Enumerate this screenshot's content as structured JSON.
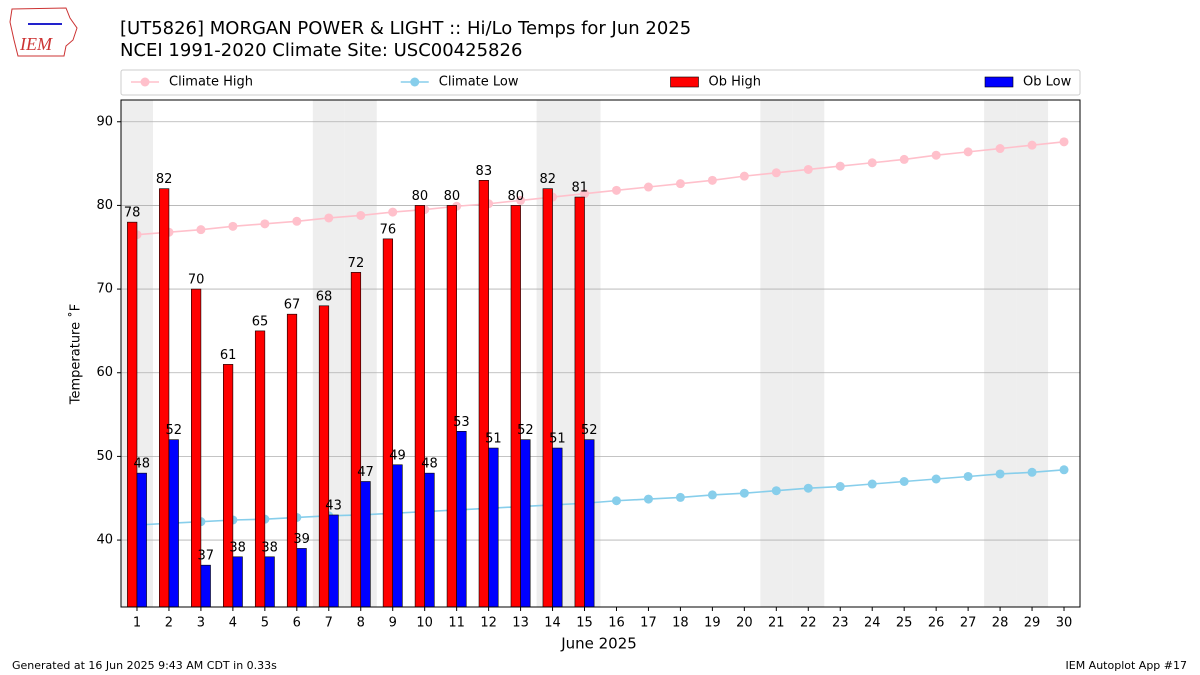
{
  "chart_data": {
    "type": "bar",
    "title": "[UT5826] MORGAN POWER & LIGHT :: Hi/Lo Temps for Jun 2025",
    "subtitle": "NCEI 1991-2020 Climate Site: USC00425826",
    "ylabel": "Temperature ˚F",
    "xlabel": "June 2025",
    "x": [
      1,
      2,
      3,
      4,
      5,
      6,
      7,
      8,
      9,
      10,
      11,
      12,
      13,
      14,
      15,
      16,
      17,
      18,
      19,
      20,
      21,
      22,
      23,
      24,
      25,
      26,
      27,
      28,
      29,
      30
    ],
    "xlim": [
      0.5,
      30.5
    ],
    "xticks": [
      1,
      2,
      3,
      4,
      5,
      6,
      7,
      8,
      9,
      10,
      11,
      12,
      13,
      14,
      15,
      16,
      17,
      18,
      19,
      20,
      21,
      22,
      23,
      24,
      25,
      26,
      27,
      28,
      29,
      30
    ],
    "ylim": [
      32,
      92.6
    ],
    "yticks": [
      40,
      50,
      60,
      70,
      80,
      90
    ],
    "grid": true,
    "legend_position": "top",
    "shaded_days": [
      1,
      7,
      8,
      14,
      15,
      21,
      22,
      28,
      29
    ],
    "shade_color": "#eeeeee",
    "series": [
      {
        "name": "Climate High",
        "type": "line",
        "color": "#ffc0cb",
        "values": [
          76.5,
          76.8,
          77.1,
          77.5,
          77.8,
          78.1,
          78.5,
          78.8,
          79.2,
          79.5,
          79.9,
          80.2,
          80.6,
          81.0,
          81.4,
          81.8,
          82.2,
          82.6,
          83.0,
          83.5,
          83.9,
          84.3,
          84.7,
          85.1,
          85.5,
          86.0,
          86.4,
          86.8,
          87.2,
          87.6
        ]
      },
      {
        "name": "Climate Low",
        "type": "line",
        "color": "#87ceeb",
        "values": [
          41.8,
          42.0,
          42.2,
          42.4,
          42.5,
          42.7,
          42.9,
          43.0,
          43.2,
          43.4,
          43.6,
          43.8,
          44.0,
          44.2,
          44.4,
          44.7,
          44.9,
          45.1,
          45.4,
          45.6,
          45.9,
          46.2,
          46.4,
          46.7,
          47.0,
          47.3,
          47.6,
          47.9,
          48.1,
          48.4
        ]
      },
      {
        "name": "Ob High",
        "type": "bar",
        "color": "#ff0000",
        "offset": -0.15,
        "data_labels": true,
        "values": [
          78,
          82,
          70,
          61,
          65,
          67,
          68,
          72,
          76,
          80,
          80,
          83,
          80,
          82,
          81,
          null,
          null,
          null,
          null,
          null,
          null,
          null,
          null,
          null,
          null,
          null,
          null,
          null,
          null,
          null
        ]
      },
      {
        "name": "Ob Low",
        "type": "bar",
        "color": "#0000ff",
        "offset": 0.15,
        "data_labels": true,
        "values": [
          48,
          52,
          37,
          38,
          38,
          39,
          43,
          47,
          49,
          48,
          53,
          51,
          52,
          51,
          52,
          null,
          null,
          null,
          null,
          null,
          null,
          null,
          null,
          null,
          null,
          null,
          null,
          null,
          null,
          null
        ]
      }
    ]
  },
  "logo": "IEM",
  "footer": {
    "left": "Generated at 16 Jun 2025 9:43 AM CDT in 0.33s",
    "right": "IEM Autoplot App #17"
  }
}
